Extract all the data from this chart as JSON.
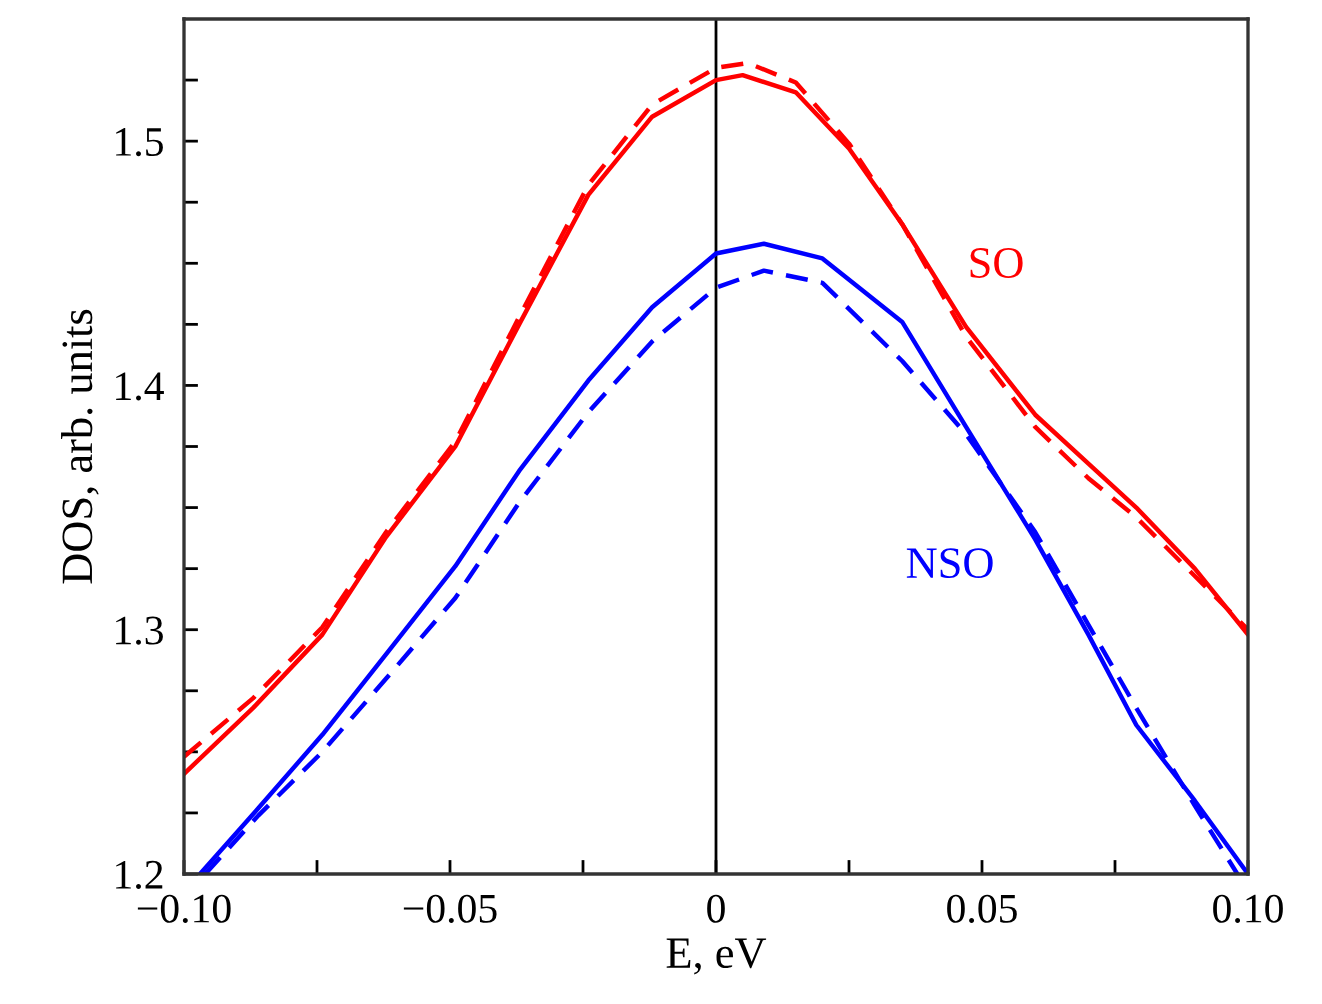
{
  "chart_data": {
    "type": "line",
    "xlabel": "E, eV",
    "ylabel": "DOS, arb. units",
    "xlim": [
      -0.1,
      0.1
    ],
    "ylim": [
      1.2,
      1.55
    ],
    "xticks": [
      {
        "value": -0.1,
        "label": "−0.10"
      },
      {
        "value": -0.075,
        "label": null
      },
      {
        "value": -0.05,
        "label": "−0.05"
      },
      {
        "value": -0.025,
        "label": null
      },
      {
        "value": 0,
        "label": "0"
      },
      {
        "value": 0.025,
        "label": null
      },
      {
        "value": 0.05,
        "label": "0.05"
      },
      {
        "value": 0.075,
        "label": null
      },
      {
        "value": 0.1,
        "label": "0.10"
      }
    ],
    "yticks": [
      1.2,
      {
        "value": 1.225,
        "label": null
      },
      {
        "value": 1.25,
        "label": null
      },
      {
        "value": 1.275,
        "label": null
      },
      1.3,
      {
        "value": 1.325,
        "label": null
      },
      {
        "value": 1.35,
        "label": null
      },
      {
        "value": 1.375,
        "label": null
      },
      1.4,
      {
        "value": 1.425,
        "label": null
      },
      {
        "value": 1.45,
        "label": null
      },
      {
        "value": 1.475,
        "label": null
      },
      1.5,
      {
        "value": 1.525,
        "label": null
      }
    ],
    "grid": false,
    "legend": false,
    "marker": "none",
    "ref_lines": [
      {
        "axis": "x",
        "value": 0,
        "label": null,
        "color": "#000000",
        "line_style": "solid"
      }
    ],
    "series": [
      {
        "name": "SO",
        "color": "#ff0000",
        "line_style": "solid",
        "x": [
          -0.1,
          -0.087,
          -0.074,
          -0.062,
          -0.049,
          -0.037,
          -0.024,
          -0.012,
          0,
          0.005,
          0.015,
          0.025,
          0.035,
          0.047,
          0.06,
          0.07,
          0.079,
          0.09,
          0.1
        ],
        "values": [
          1.241,
          1.268,
          1.298,
          1.338,
          1.375,
          1.425,
          1.478,
          1.51,
          1.525,
          1.527,
          1.52,
          1.497,
          1.466,
          1.424,
          1.388,
          1.368,
          1.35,
          1.325,
          1.298
        ]
      },
      {
        "color": "#ff0000",
        "line_style": "dashed",
        "x": [
          -0.1,
          -0.087,
          -0.074,
          -0.062,
          -0.049,
          -0.037,
          -0.024,
          -0.012,
          0,
          0.006,
          0.015,
          0.025,
          0.035,
          0.047,
          0.06,
          0.07,
          0.079,
          0.09,
          0.1
        ],
        "values": [
          1.248,
          1.272,
          1.301,
          1.34,
          1.377,
          1.428,
          1.482,
          1.515,
          1.53,
          1.532,
          1.524,
          1.499,
          1.466,
          1.42,
          1.383,
          1.362,
          1.346,
          1.322,
          1.3
        ]
      },
      {
        "name": "NSO",
        "color": "#0000ff",
        "line_style": "solid",
        "x": [
          -0.097,
          -0.086,
          -0.074,
          -0.062,
          -0.049,
          -0.037,
          -0.024,
          -0.012,
          0,
          0.009,
          0.02,
          0.035,
          0.047,
          0.06,
          0.07,
          0.079,
          0.09,
          0.1
        ],
        "values": [
          1.2,
          1.227,
          1.257,
          1.29,
          1.326,
          1.365,
          1.402,
          1.432,
          1.454,
          1.458,
          1.452,
          1.426,
          1.383,
          1.337,
          1.298,
          1.261,
          1.23,
          1.2
        ]
      },
      {
        "color": "#0000ff",
        "line_style": "dashed",
        "x": [
          -0.096,
          -0.086,
          -0.074,
          -0.062,
          -0.049,
          -0.037,
          -0.024,
          -0.012,
          0,
          0.009,
          0.02,
          0.035,
          0.047,
          0.06,
          0.07,
          0.079,
          0.09,
          0.098
        ],
        "values": [
          1.2,
          1.224,
          1.25,
          1.28,
          1.313,
          1.352,
          1.389,
          1.418,
          1.44,
          1.447,
          1.442,
          1.41,
          1.38,
          1.34,
          1.302,
          1.268,
          1.228,
          1.2
        ]
      }
    ]
  }
}
